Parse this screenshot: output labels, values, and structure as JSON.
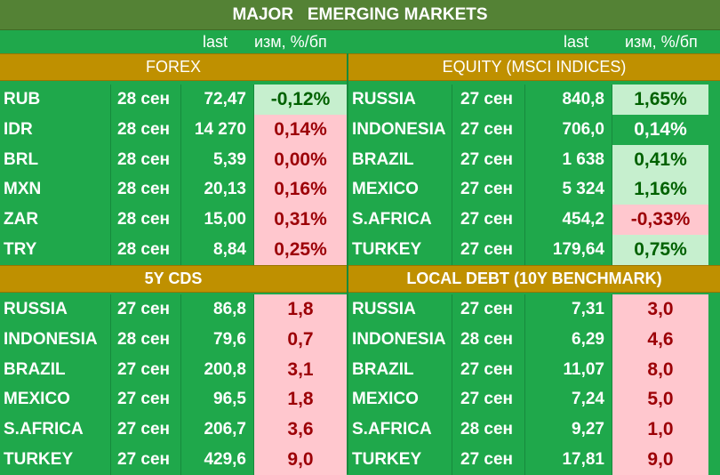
{
  "title": "MAJOR   EMERGING MARKETS",
  "columns": {
    "last": "last",
    "change": "изм, %/бп"
  },
  "colors": {
    "header_bg": "#548235",
    "section_bg": "#bf9000",
    "table_bg": "#1fa84b",
    "positive_bg": "#c6efce",
    "positive_text": "#006100",
    "negative_bg": "#ffc7ce",
    "negative_text": "#9c0006"
  },
  "forex": {
    "title": "FOREX",
    "rows": [
      {
        "name": "RUB",
        "date": "28 сен",
        "last": "72,47",
        "change": "-0,12%",
        "style": "green"
      },
      {
        "name": "IDR",
        "date": "28 сен",
        "last": "14 270",
        "change": "0,14%",
        "style": "red"
      },
      {
        "name": "BRL",
        "date": "28 сен",
        "last": "5,39",
        "change": "0,00%",
        "style": "red"
      },
      {
        "name": "MXN",
        "date": "28 сен",
        "last": "20,13",
        "change": "0,16%",
        "style": "red"
      },
      {
        "name": "ZAR",
        "date": "28 сен",
        "last": "15,00",
        "change": "0,31%",
        "style": "red"
      },
      {
        "name": "TRY",
        "date": "28 сен",
        "last": "8,84",
        "change": "0,25%",
        "style": "red"
      }
    ]
  },
  "equity": {
    "title": "EQUITY (MSCI INDICES)",
    "rows": [
      {
        "name": "RUSSIA",
        "date": "27 сен",
        "last": "840,8",
        "change": "1,65%",
        "style": "green"
      },
      {
        "name": "INDONESIA",
        "date": "27 сен",
        "last": "706,0",
        "change": "0,14%",
        "style": "plain"
      },
      {
        "name": "BRAZIL",
        "date": "27 сен",
        "last": "1 638",
        "change": "0,41%",
        "style": "green"
      },
      {
        "name": "MEXICO",
        "date": "27 сен",
        "last": "5 324",
        "change": "1,16%",
        "style": "green"
      },
      {
        "name": "S.AFRICA",
        "date": "27 сен",
        "last": "454,2",
        "change": "-0,33%",
        "style": "red"
      },
      {
        "name": "TURKEY",
        "date": "27 сен",
        "last": "179,64",
        "change": "0,75%",
        "style": "green"
      }
    ]
  },
  "cds": {
    "title": "5Y CDS",
    "rows": [
      {
        "name": "RUSSIA",
        "date": "27 сен",
        "last": "86,8",
        "change": "1,8",
        "style": "red"
      },
      {
        "name": "INDONESIA",
        "date": "28 сен",
        "last": "79,6",
        "change": "0,7",
        "style": "red"
      },
      {
        "name": "BRAZIL",
        "date": "27 сен",
        "last": "200,8",
        "change": "3,1",
        "style": "red"
      },
      {
        "name": "MEXICO",
        "date": "27 сен",
        "last": "96,5",
        "change": "1,8",
        "style": "red"
      },
      {
        "name": "S.AFRICA",
        "date": "27 сен",
        "last": "206,7",
        "change": "3,6",
        "style": "red"
      },
      {
        "name": "TURKEY",
        "date": "27 сен",
        "last": "429,6",
        "change": "9,0",
        "style": "red"
      }
    ]
  },
  "local_debt": {
    "title": "LOCAL DEBT (10Y BENCHMARK)",
    "rows": [
      {
        "name": "RUSSIA",
        "date": "27 сен",
        "last": "7,31",
        "change": "3,0",
        "style": "red"
      },
      {
        "name": "INDONESIA",
        "date": "28 сен",
        "last": "6,29",
        "change": "4,6",
        "style": "red"
      },
      {
        "name": "BRAZIL",
        "date": "27 сен",
        "last": "11,07",
        "change": "8,0",
        "style": "red"
      },
      {
        "name": "MEXICO",
        "date": "27 сен",
        "last": "7,24",
        "change": "5,0",
        "style": "red"
      },
      {
        "name": "S.AFRICA",
        "date": "28 сен",
        "last": "9,27",
        "change": "1,0",
        "style": "red"
      },
      {
        "name": "TURKEY",
        "date": "27 сен",
        "last": "17,81",
        "change": "9,0",
        "style": "red"
      }
    ]
  }
}
